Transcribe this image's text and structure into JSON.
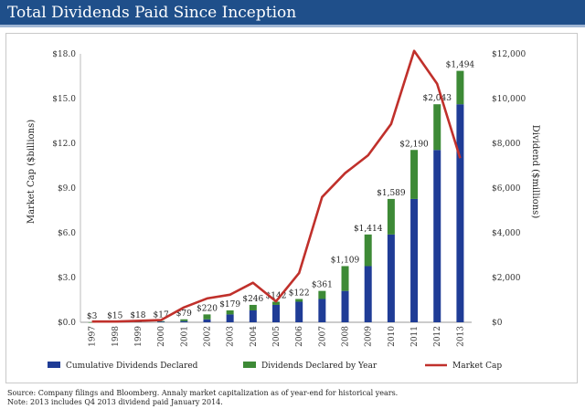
{
  "header": {
    "title": "Total Dividends Paid Since Inception"
  },
  "chart_data": {
    "type": "bar",
    "categories": [
      "1997",
      "1998",
      "1999",
      "2000",
      "2001",
      "2002",
      "2003",
      "2004",
      "2005",
      "2006",
      "2007",
      "2008",
      "2009",
      "2010",
      "2011",
      "2012",
      "2013"
    ],
    "series": [
      {
        "name": "Cumulative Dividends Declared",
        "type": "bar",
        "stack": "dividends",
        "axis": "right",
        "color": "#1f3c96",
        "values": [
          0,
          3,
          18,
          36,
          53,
          132,
          352,
          531,
          777,
          919,
          1041,
          1402,
          2511,
          3925,
          5514,
          7704,
          9747
        ]
      },
      {
        "name": "Dividends Declared by Year",
        "type": "bar",
        "stack": "dividends",
        "axis": "right",
        "color": "#3d8a36",
        "values": [
          3,
          15,
          18,
          17,
          79,
          220,
          179,
          246,
          142,
          122,
          361,
          1109,
          1414,
          1589,
          2190,
          2043,
          1494
        ]
      },
      {
        "name": "Market Cap",
        "type": "line",
        "axis": "left",
        "color": "#c0302b",
        "values": [
          0.05,
          0.05,
          0.1,
          0.15,
          1.0,
          1.6,
          1.85,
          2.65,
          1.4,
          3.3,
          8.4,
          10.0,
          11.2,
          13.3,
          18.2,
          16.0,
          11.0
        ]
      }
    ],
    "bar_labels": [
      "$3",
      "$15",
      "$18",
      "$17",
      "$79",
      "$220",
      "$179",
      "$246",
      "$142",
      "$122",
      "$361",
      "$1,109",
      "$1,414",
      "$1,589",
      "$2,190",
      "$2,043",
      "$1,494"
    ],
    "ylabel_left": "Market Cap ($billions)",
    "ylabel_right": "Dividend ($millions)",
    "ylim_left": [
      0,
      18
    ],
    "ylim_right": [
      0,
      12000
    ],
    "yticks_left": [
      "$0.0",
      "$3.0",
      "$6.0",
      "$9.0",
      "$12.0",
      "$15.0",
      "$18.0"
    ],
    "yticks_right": [
      "$0",
      "$2,000",
      "$4,000",
      "$6,000",
      "$8,000",
      "$10,000",
      "$12,000"
    ],
    "grid": false,
    "legend_position": "bottom"
  },
  "footnotes": {
    "line1": "Source: Company filings and Bloomberg. Annaly market capitalization as of year-end for historical years.",
    "line2": "Note: 2013 includes Q4 2013 dividend paid January 2014."
  },
  "colors": {
    "header": "#1f4f8a",
    "cumulative": "#1f3c96",
    "annual": "#3d8a36",
    "market_cap": "#c0302b"
  }
}
